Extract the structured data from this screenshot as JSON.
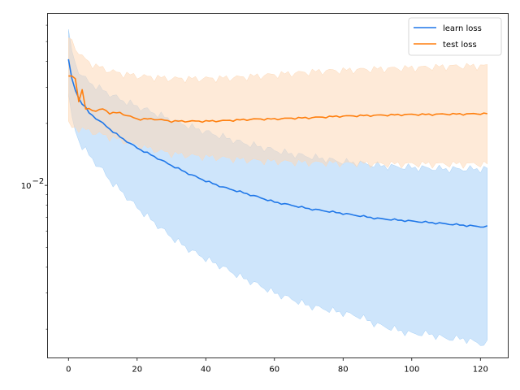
{
  "chart_data": {
    "type": "line",
    "title": "",
    "xlabel": "",
    "ylabel": "",
    "xlim": [
      -6.1,
      128.1
    ],
    "ylim": [
      0.00145,
      0.0685
    ],
    "yscale": "log",
    "grid": false,
    "legend_position": "top-right",
    "x_ticks": [
      0,
      20,
      40,
      60,
      80,
      100,
      120
    ],
    "x_tick_labels": [
      "0",
      "20",
      "40",
      "60",
      "80",
      "100",
      "120"
    ],
    "y_major_ticks": [
      0.01
    ],
    "y_major_tick_labels": [
      "10",
      "−2"
    ],
    "y_minor_ticks": [
      0.002,
      0.003,
      0.004,
      0.005,
      0.006,
      0.007,
      0.008,
      0.009,
      0.02,
      0.03,
      0.04,
      0.05,
      0.06
    ],
    "series": [
      {
        "name": "learn loss",
        "color": "#1f77e8",
        "band_color": "#a6d0f7",
        "keypoints": {
          "x": [
            0,
            1,
            2,
            3,
            4,
            5,
            6,
            8,
            10,
            12,
            15,
            20,
            25,
            30,
            35,
            40,
            45,
            50,
            55,
            60,
            65,
            70,
            75,
            80,
            85,
            90,
            95,
            100,
            105,
            110,
            115,
            120,
            122
          ],
          "mean": [
            0.041,
            0.033,
            0.029,
            0.0265,
            0.025,
            0.0238,
            0.0225,
            0.0212,
            0.02,
            0.0188,
            0.0172,
            0.0152,
            0.0138,
            0.0125,
            0.0114,
            0.0105,
            0.0098,
            0.0093,
            0.0088,
            0.0083,
            0.008,
            0.0077,
            0.0075,
            0.0073,
            0.0071,
            0.0069,
            0.0068,
            0.0067,
            0.0066,
            0.0065,
            0.0064,
            0.0063,
            0.0063
          ],
          "lower": [
            0.028,
            0.021,
            0.0185,
            0.0165,
            0.0155,
            0.0148,
            0.014,
            0.0128,
            0.0118,
            0.0106,
            0.0095,
            0.0078,
            0.0066,
            0.0056,
            0.0049,
            0.0044,
            0.004,
            0.0036,
            0.0033,
            0.003,
            0.0028,
            0.0026,
            0.0025,
            0.0024,
            0.0023,
            0.0021,
            0.002,
            0.0019,
            0.0019,
            0.0018,
            0.0018,
            0.0017,
            0.0017
          ]
        },
        "upper": [
          0.055,
          0.045,
          0.039,
          0.036,
          0.034,
          0.0328,
          0.0318,
          0.0302,
          0.029,
          0.0278,
          0.0262,
          0.0242,
          0.0225,
          0.0208,
          0.0194,
          0.0182,
          0.0172,
          0.0162,
          0.0155,
          0.0148,
          0.0142,
          0.0138,
          0.0134,
          0.013,
          0.0128,
          0.0125,
          0.0123,
          0.0122,
          0.0121,
          0.012,
          0.012,
          0.012,
          0.012
        ]
      },
      {
        "name": "test loss",
        "color": "#ff7f0e",
        "band_color": "#fdd9b8",
        "keypoints": {
          "x": [
            0,
            1,
            2,
            3,
            4,
            5,
            6,
            8,
            10,
            12,
            15,
            20,
            25,
            30,
            35,
            40,
            45,
            50,
            55,
            60,
            65,
            70,
            75,
            80,
            85,
            90,
            95,
            100,
            105,
            110,
            115,
            120,
            122
          ],
          "mean": [
            0.034,
            0.034,
            0.033,
            0.0255,
            0.029,
            0.0235,
            0.0235,
            0.023,
            0.0235,
            0.0225,
            0.0225,
            0.021,
            0.021,
            0.0205,
            0.0205,
            0.0205,
            0.0206,
            0.0208,
            0.021,
            0.021,
            0.0212,
            0.0213,
            0.0215,
            0.0217,
            0.0218,
            0.0219,
            0.022,
            0.0221,
            0.0221,
            0.0222,
            0.0222,
            0.0223,
            0.0223
          ],
          "lower": [
            0.02,
            0.019,
            0.019,
            0.019,
            0.0188,
            0.0186,
            0.0184,
            0.018,
            0.0176,
            0.0172,
            0.0166,
            0.0157,
            0.0149,
            0.0143,
            0.014,
            0.0138,
            0.0136,
            0.0134,
            0.0132,
            0.0131,
            0.013,
            0.0129,
            0.0129,
            0.0128,
            0.0128,
            0.0127,
            0.0127,
            0.0127,
            0.0127,
            0.0127,
            0.0127,
            0.0127,
            0.0127
          ],
          "upper": [
            0.052,
            0.05,
            0.047,
            0.044,
            0.042,
            0.041,
            0.0395,
            0.038,
            0.037,
            0.036,
            0.035,
            0.034,
            0.0335,
            0.033,
            0.033,
            0.033,
            0.0332,
            0.0335,
            0.034,
            0.0345,
            0.035,
            0.0355,
            0.036,
            0.0362,
            0.0365,
            0.0368,
            0.037,
            0.0372,
            0.0375,
            0.0378,
            0.038,
            0.038,
            0.038
          ]
        }
      }
    ]
  }
}
